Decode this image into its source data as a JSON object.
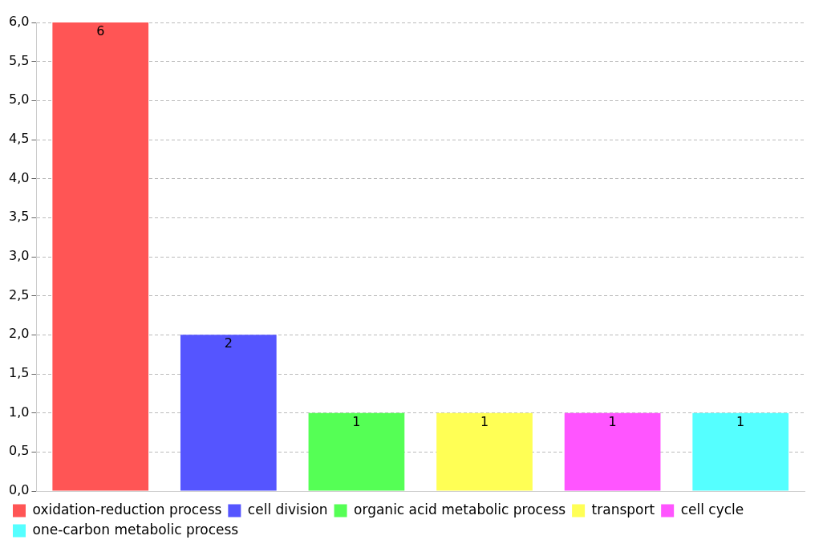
{
  "chart_data": {
    "type": "bar",
    "categories": [
      null
    ],
    "series": [
      {
        "name": "oxidation-reduction process",
        "color": "#ff5555",
        "values": [
          6
        ]
      },
      {
        "name": "cell division",
        "color": "#5555ff",
        "values": [
          2
        ]
      },
      {
        "name": "organic acid metabolic process",
        "color": "#55ff55",
        "values": [
          1
        ]
      },
      {
        "name": "transport",
        "color": "#ffff55",
        "values": [
          1
        ]
      },
      {
        "name": "cell cycle",
        "color": "#ff55ff",
        "values": [
          1
        ]
      },
      {
        "name": "one-carbon metabolic process",
        "color": "#55ffff",
        "values": [
          1
        ]
      }
    ],
    "ylim": [
      0,
      6
    ],
    "yticks": [
      {
        "value": 0,
        "label": "0,0"
      },
      {
        "value": 0.5,
        "label": "0,5"
      },
      {
        "value": 1,
        "label": "1,0"
      },
      {
        "value": 1.5,
        "label": "1,5"
      },
      {
        "value": 2,
        "label": "2,0"
      },
      {
        "value": 2.5,
        "label": "2,5"
      },
      {
        "value": 3,
        "label": "3,0"
      },
      {
        "value": 3.5,
        "label": "3,5"
      },
      {
        "value": 4,
        "label": "4,0"
      },
      {
        "value": 4.5,
        "label": "4,5"
      },
      {
        "value": 5,
        "label": "5,0"
      },
      {
        "value": 5.5,
        "label": "5,5"
      },
      {
        "value": 6,
        "label": "6,0"
      }
    ],
    "grid": "y",
    "legend": "bottom",
    "tick_labels": "y",
    "data_labels": true
  }
}
